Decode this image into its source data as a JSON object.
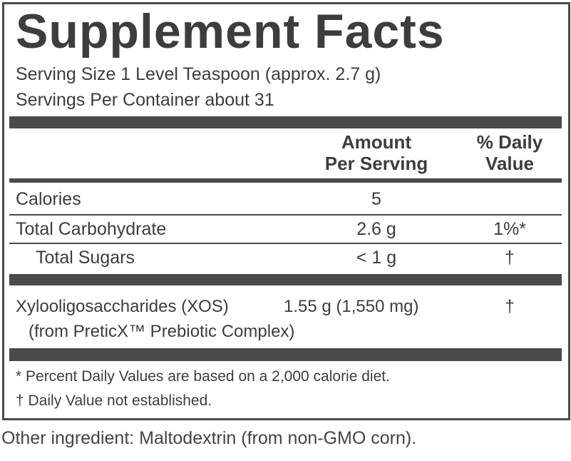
{
  "header": {
    "title": "Supplement Facts",
    "serving_size": "Serving Size 1 Level Teaspoon (approx. 2.7 g)",
    "servings_per_container": "Servings Per Container about 31"
  },
  "table": {
    "columns": [
      [
        "Amount",
        "Per Serving"
      ],
      [
        "% Daily",
        "Value"
      ]
    ],
    "rows": [
      {
        "name": "Calories",
        "amount": "5"
      },
      {
        "name": "Total Carbohydrate",
        "amount": "2.6 g",
        "daily_value": "1%*"
      },
      {
        "name": "Total Sugars",
        "amount": "< 1 g",
        "daily_value": "†"
      },
      {
        "name": "Xylooligosaccharides (XOS)",
        "amount": "1.55 g (1,550 mg)",
        "daily_value": "†",
        "source": "(from PreticX™ Prebiotic Complex)"
      }
    ]
  },
  "footnotes": [
    "* Percent Daily Values are based on a 2,000 calorie diet.",
    "† Daily Value not established."
  ],
  "other_ingredients": "Other ingredient: Maltodextrin (from non-GMO corn)."
}
